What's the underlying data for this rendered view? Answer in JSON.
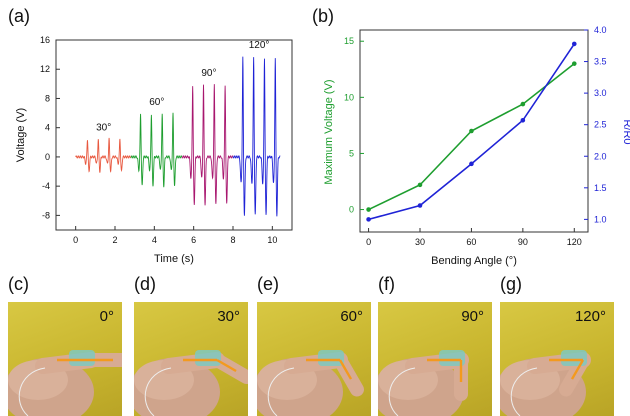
{
  "figure": {
    "panels": [
      "(a)",
      "(b)",
      "(c)",
      "(d)",
      "(e)",
      "(f)",
      "(g)"
    ]
  },
  "chart_data": [
    {
      "type": "line",
      "panel": "(a)",
      "xlabel": "Time (s)",
      "ylabel": "Voltage (V)",
      "xlim": [
        -1,
        11
      ],
      "ylim": [
        -10,
        16
      ],
      "xticks": [
        0,
        2,
        4,
        6,
        8,
        10
      ],
      "yticks": [
        -8,
        -4,
        0,
        4,
        8,
        12,
        16
      ],
      "series": [
        {
          "label": "30°",
          "color": "#e8583f",
          "start": 0.0,
          "end": 2.8,
          "peaks": [
            0.6,
            1.15,
            1.7,
            2.25
          ],
          "amp_pos": 2.5,
          "amp_neg": -2.0
        },
        {
          "label": "60°",
          "color": "#1e9e2f",
          "start": 2.8,
          "end": 5.4,
          "peaks": [
            3.3,
            3.85,
            4.4,
            4.95
          ],
          "amp_pos": 6.0,
          "amp_neg": -4.0
        },
        {
          "label": "90°",
          "color": "#a8176f",
          "start": 5.4,
          "end": 8.0,
          "peaks": [
            5.95,
            6.5,
            7.05,
            7.6
          ],
          "amp_pos": 10.0,
          "amp_neg": -6.5
        },
        {
          "label": "120°",
          "color": "#1f23d6",
          "start": 8.0,
          "end": 10.4,
          "peaks": [
            8.5,
            9.05,
            9.6,
            10.15
          ],
          "amp_pos": 13.8,
          "amp_neg": -8.0
        }
      ]
    },
    {
      "type": "line",
      "panel": "(b)",
      "xlabel": "Bending Angle (°)",
      "ylabel_left": "Maximum Voltage (V)",
      "ylabel_right": "R/R0",
      "categories": [
        0,
        30,
        60,
        90,
        120
      ],
      "xlim": [
        -5,
        128
      ],
      "ylim_left": [
        -2,
        16
      ],
      "ylim_right": [
        0.8,
        4.0
      ],
      "yticks_left": [
        0,
        5,
        10,
        15
      ],
      "yticks_right": [
        1.0,
        1.5,
        2.0,
        2.5,
        3.0,
        3.5,
        4.0
      ],
      "series": [
        {
          "axis": "left",
          "color": "#1e9e2f",
          "values": [
            0.0,
            2.2,
            7.0,
            9.4,
            13.0
          ]
        },
        {
          "axis": "right",
          "color": "#1f23d6",
          "values": [
            1.0,
            1.22,
            1.88,
            2.57,
            3.78
          ]
        }
      ]
    }
  ],
  "photos": [
    {
      "angle": "0°",
      "bend": 0
    },
    {
      "angle": "30°",
      "bend": 30
    },
    {
      "angle": "60°",
      "bend": 60
    },
    {
      "angle": "90°",
      "bend": 90
    },
    {
      "angle": "120°",
      "bend": 120
    }
  ]
}
